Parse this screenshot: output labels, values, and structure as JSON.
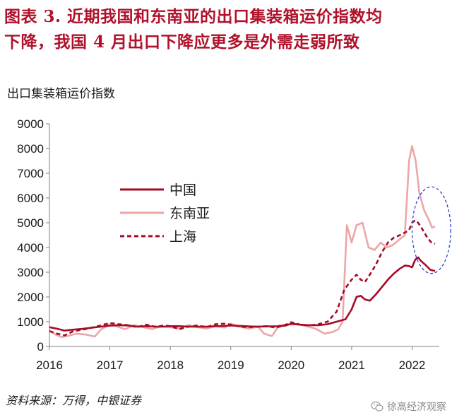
{
  "header": {
    "line1": "图表 3.  近期我国和东南亚的出口集装箱运价指数均",
    "line2": "下降，我国 4 月出口下降应更多是外需走弱所致"
  },
  "chart_data": {
    "type": "line",
    "title": "出口集装箱运价指数",
    "xlabel": "",
    "ylabel": "",
    "x_ticks": [
      "2016",
      "2017",
      "2018",
      "2019",
      "2020",
      "2021",
      "2022"
    ],
    "xlim": [
      2016.0,
      2022.45
    ],
    "ylim": [
      0,
      9000
    ],
    "y_ticks": [
      "0",
      "1000",
      "2000",
      "3000",
      "4000",
      "5000",
      "6000",
      "7000",
      "8000",
      "9000"
    ],
    "grid": false,
    "legend_position": "center-left",
    "series": [
      {
        "name": "中国",
        "color": "#a50b25",
        "style": "solid",
        "points": [
          [
            2016.0,
            780
          ],
          [
            2016.12,
            720
          ],
          [
            2016.25,
            640
          ],
          [
            2016.4,
            680
          ],
          [
            2016.55,
            710
          ],
          [
            2016.7,
            760
          ],
          [
            2016.85,
            800
          ],
          [
            2017.0,
            840
          ],
          [
            2017.15,
            860
          ],
          [
            2017.3,
            850
          ],
          [
            2017.45,
            800
          ],
          [
            2017.6,
            820
          ],
          [
            2017.75,
            800
          ],
          [
            2017.9,
            800
          ],
          [
            2018.0,
            820
          ],
          [
            2018.15,
            820
          ],
          [
            2018.3,
            800
          ],
          [
            2018.45,
            800
          ],
          [
            2018.6,
            800
          ],
          [
            2018.75,
            820
          ],
          [
            2018.9,
            830
          ],
          [
            2019.0,
            850
          ],
          [
            2019.15,
            830
          ],
          [
            2019.3,
            810
          ],
          [
            2019.45,
            800
          ],
          [
            2019.6,
            810
          ],
          [
            2019.75,
            810
          ],
          [
            2019.9,
            840
          ],
          [
            2020.0,
            920
          ],
          [
            2020.15,
            880
          ],
          [
            2020.3,
            860
          ],
          [
            2020.45,
            860
          ],
          [
            2020.6,
            900
          ],
          [
            2020.75,
            1000
          ],
          [
            2020.9,
            1100
          ],
          [
            2021.0,
            1500
          ],
          [
            2021.08,
            2000
          ],
          [
            2021.15,
            2050
          ],
          [
            2021.22,
            1900
          ],
          [
            2021.3,
            1850
          ],
          [
            2021.4,
            2100
          ],
          [
            2021.5,
            2400
          ],
          [
            2021.6,
            2700
          ],
          [
            2021.7,
            2950
          ],
          [
            2021.8,
            3150
          ],
          [
            2021.88,
            3270
          ],
          [
            2021.95,
            3250
          ],
          [
            2022.0,
            3200
          ],
          [
            2022.05,
            3500
          ],
          [
            2022.1,
            3600
          ],
          [
            2022.15,
            3450
          ],
          [
            2022.22,
            3300
          ],
          [
            2022.3,
            3100
          ],
          [
            2022.38,
            3050
          ]
        ]
      },
      {
        "name": "东南亚",
        "color": "#eda6a6",
        "style": "solid",
        "points": [
          [
            2016.0,
            650
          ],
          [
            2016.1,
            480
          ],
          [
            2016.2,
            380
          ],
          [
            2016.3,
            420
          ],
          [
            2016.45,
            520
          ],
          [
            2016.6,
            480
          ],
          [
            2016.75,
            400
          ],
          [
            2016.85,
            680
          ],
          [
            2017.0,
            900
          ],
          [
            2017.1,
            820
          ],
          [
            2017.25,
            700
          ],
          [
            2017.4,
            860
          ],
          [
            2017.55,
            780
          ],
          [
            2017.7,
            700
          ],
          [
            2017.85,
            820
          ],
          [
            2018.0,
            780
          ],
          [
            2018.15,
            720
          ],
          [
            2018.3,
            860
          ],
          [
            2018.45,
            780
          ],
          [
            2018.6,
            720
          ],
          [
            2018.75,
            820
          ],
          [
            2018.9,
            760
          ],
          [
            2019.0,
            920
          ],
          [
            2019.15,
            800
          ],
          [
            2019.3,
            720
          ],
          [
            2019.45,
            800
          ],
          [
            2019.55,
            520
          ],
          [
            2019.68,
            420
          ],
          [
            2019.8,
            850
          ],
          [
            2019.95,
            880
          ],
          [
            2020.1,
            900
          ],
          [
            2020.25,
            820
          ],
          [
            2020.4,
            720
          ],
          [
            2020.55,
            520
          ],
          [
            2020.68,
            580
          ],
          [
            2020.78,
            700
          ],
          [
            2020.85,
            1000
          ],
          [
            2020.92,
            4900
          ],
          [
            2021.0,
            4200
          ],
          [
            2021.08,
            4900
          ],
          [
            2021.18,
            5000
          ],
          [
            2021.28,
            4000
          ],
          [
            2021.38,
            3900
          ],
          [
            2021.48,
            4200
          ],
          [
            2021.58,
            4000
          ],
          [
            2021.68,
            4100
          ],
          [
            2021.78,
            4300
          ],
          [
            2021.88,
            4500
          ],
          [
            2021.95,
            7500
          ],
          [
            2022.0,
            8100
          ],
          [
            2022.06,
            7500
          ],
          [
            2022.12,
            6200
          ],
          [
            2022.2,
            5500
          ],
          [
            2022.28,
            5100
          ],
          [
            2022.33,
            4800
          ],
          [
            2022.38,
            4850
          ]
        ]
      },
      {
        "name": "上海",
        "color": "#a50b25",
        "style": "dashed",
        "points": [
          [
            2016.0,
            620
          ],
          [
            2016.12,
            520
          ],
          [
            2016.25,
            450
          ],
          [
            2016.4,
            620
          ],
          [
            2016.55,
            680
          ],
          [
            2016.7,
            760
          ],
          [
            2016.85,
            850
          ],
          [
            2017.0,
            950
          ],
          [
            2017.15,
            900
          ],
          [
            2017.3,
            860
          ],
          [
            2017.45,
            780
          ],
          [
            2017.6,
            880
          ],
          [
            2017.75,
            800
          ],
          [
            2017.9,
            850
          ],
          [
            2018.0,
            820
          ],
          [
            2018.15,
            700
          ],
          [
            2018.3,
            800
          ],
          [
            2018.45,
            850
          ],
          [
            2018.6,
            780
          ],
          [
            2018.75,
            900
          ],
          [
            2018.9,
            920
          ],
          [
            2019.0,
            880
          ],
          [
            2019.15,
            800
          ],
          [
            2019.3,
            780
          ],
          [
            2019.45,
            800
          ],
          [
            2019.6,
            820
          ],
          [
            2019.75,
            760
          ],
          [
            2019.9,
            870
          ],
          [
            2020.0,
            980
          ],
          [
            2020.15,
            880
          ],
          [
            2020.3,
            850
          ],
          [
            2020.45,
            900
          ],
          [
            2020.6,
            1000
          ],
          [
            2020.75,
            1400
          ],
          [
            2020.88,
            2300
          ],
          [
            2021.0,
            2700
          ],
          [
            2021.08,
            2900
          ],
          [
            2021.15,
            2700
          ],
          [
            2021.22,
            2600
          ],
          [
            2021.3,
            2900
          ],
          [
            2021.4,
            3300
          ],
          [
            2021.5,
            3800
          ],
          [
            2021.6,
            4200
          ],
          [
            2021.7,
            4400
          ],
          [
            2021.8,
            4500
          ],
          [
            2021.88,
            4600
          ],
          [
            2021.95,
            4700
          ],
          [
            2022.0,
            5000
          ],
          [
            2022.05,
            5100
          ],
          [
            2022.1,
            5000
          ],
          [
            2022.18,
            4700
          ],
          [
            2022.25,
            4400
          ],
          [
            2022.32,
            4200
          ],
          [
            2022.38,
            4150
          ]
        ]
      }
    ],
    "annotation": {
      "type": "ellipse",
      "color": "#2a3fd8",
      "style": "dashed",
      "center": [
        2022.32,
        4700
      ],
      "radius_x_years": 0.32,
      "radius_y_value": 1750
    }
  },
  "footer": {
    "source": "资料来源：万得，中银证券",
    "watermark": "徐高经济观察"
  }
}
